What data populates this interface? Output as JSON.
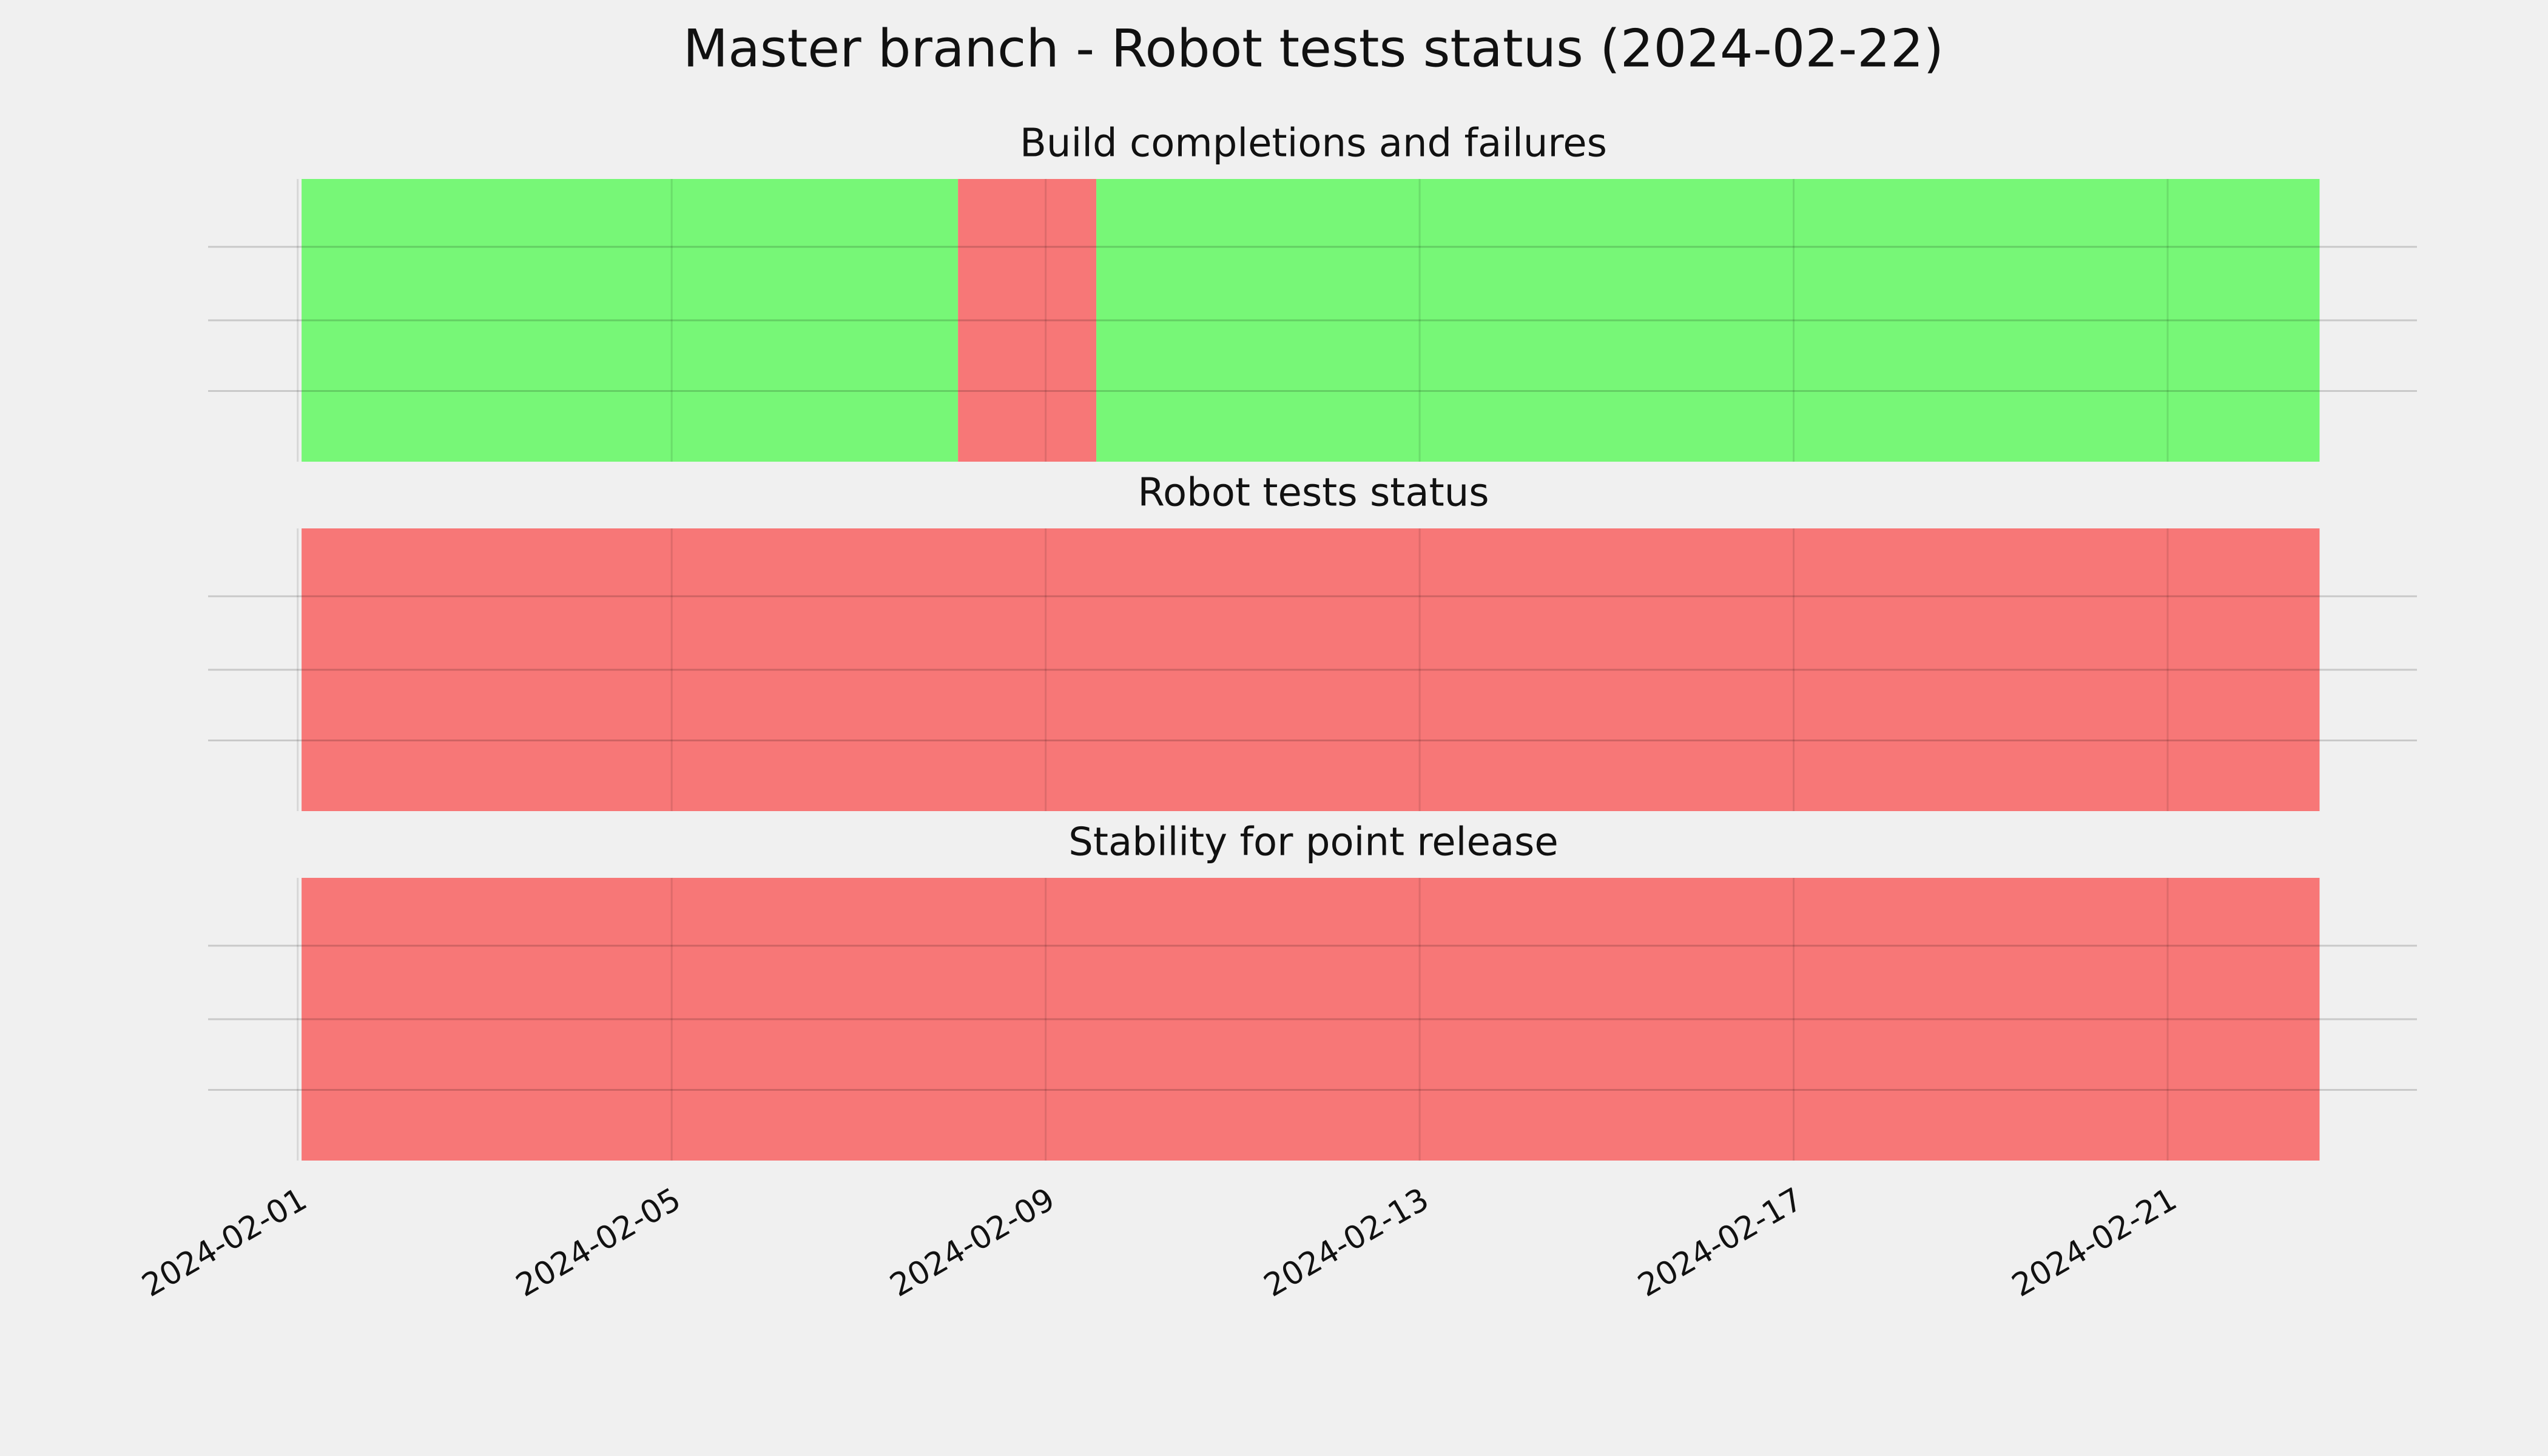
{
  "chart_data": {
    "type": "timeline",
    "title": "Master branch - Robot tests status (2024-02-22)",
    "xlim": [
      "2024-01-31T01:00",
      "2024-02-23T16:00"
    ],
    "xticks": [
      "2024-02-01",
      "2024-02-05",
      "2024-02-09",
      "2024-02-13",
      "2024-02-17",
      "2024-02-21"
    ],
    "grid": true,
    "panels": [
      {
        "title": "Build completions and failures",
        "segments": [
          {
            "start": "2024-02-01T01:00",
            "end": "2024-02-08T01:30",
            "color": "#77f777"
          },
          {
            "start": "2024-02-08T01:30",
            "end": "2024-02-09T13:00",
            "color": "#f77777"
          },
          {
            "start": "2024-02-09T13:00",
            "end": "2024-02-22T15:00",
            "color": "#77f777"
          }
        ]
      },
      {
        "title": "Robot tests status",
        "segments": [
          {
            "start": "2024-02-01T01:00",
            "end": "2024-02-22T15:00",
            "color": "#f77777"
          }
        ]
      },
      {
        "title": "Stability for point release",
        "segments": [
          {
            "start": "2024-02-01T01:00",
            "end": "2024-02-22T15:00",
            "color": "#f77777"
          }
        ]
      }
    ]
  }
}
